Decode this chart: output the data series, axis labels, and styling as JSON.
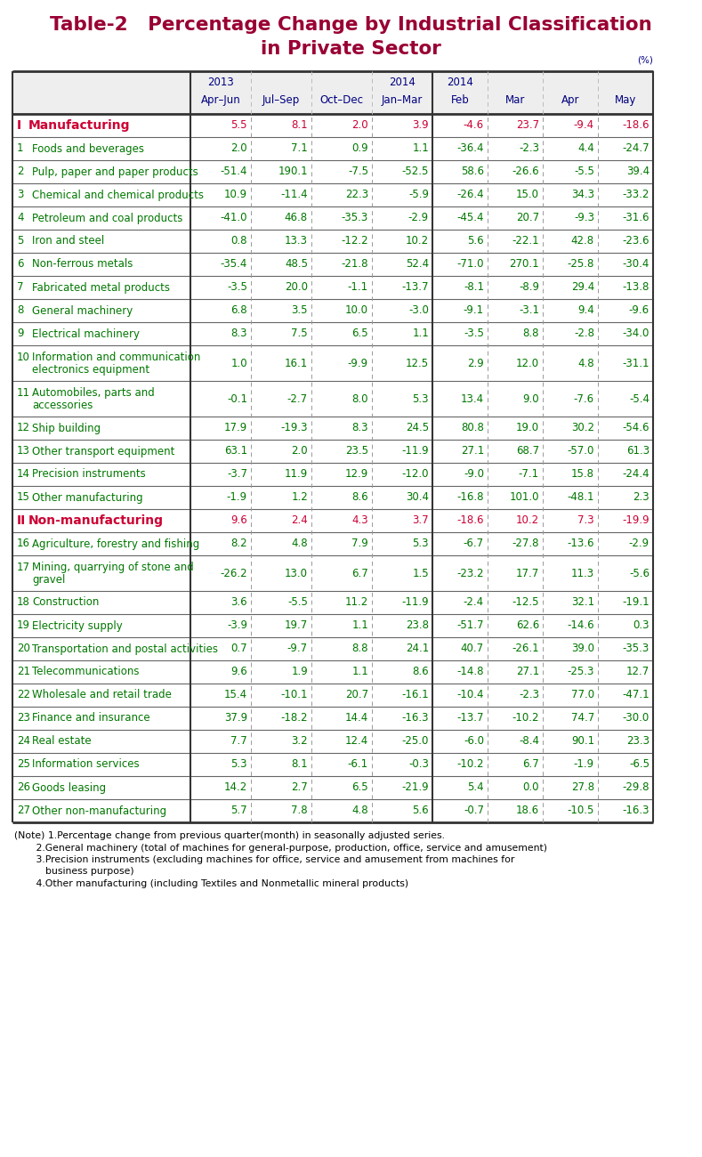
{
  "title_line1": "Table-2   Percentage Change by Industrial Classification",
  "title_line2": "in Private Sector",
  "title_color": "#990033",
  "percent_label": "(%)",
  "col_headers": [
    {
      "line1": "2013",
      "line2": "Apr–Jun"
    },
    {
      "line1": "",
      "line2": "Jul–Sep"
    },
    {
      "line1": "",
      "line2": "Oct–Dec"
    },
    {
      "line1": "2014",
      "line2": "Jan–Mar"
    },
    {
      "line1": "2014",
      "line2": "Feb"
    },
    {
      "line1": "",
      "line2": "Mar"
    },
    {
      "line1": "",
      "line2": "Apr"
    },
    {
      "line1": "",
      "line2": "May"
    }
  ],
  "rows": [
    {
      "num": "I",
      "label": "Manufacturing",
      "type": "section",
      "values": [
        "5.5",
        "8.1",
        "2.0",
        "3.9",
        "-4.6",
        "23.7",
        "-9.4",
        "-18.6"
      ]
    },
    {
      "num": "1",
      "label": "Foods and beverages",
      "type": "normal",
      "values": [
        "2.0",
        "7.1",
        "0.9",
        "1.1",
        "-36.4",
        "-2.3",
        "4.4",
        "-24.7"
      ]
    },
    {
      "num": "2",
      "label": "Pulp, paper and paper products",
      "type": "normal",
      "values": [
        "-51.4",
        "190.1",
        "-7.5",
        "-52.5",
        "58.6",
        "-26.6",
        "-5.5",
        "39.4"
      ]
    },
    {
      "num": "3",
      "label": "Chemical and chemical products",
      "type": "normal",
      "values": [
        "10.9",
        "-11.4",
        "22.3",
        "-5.9",
        "-26.4",
        "15.0",
        "34.3",
        "-33.2"
      ]
    },
    {
      "num": "4",
      "label": "Petroleum and coal products",
      "type": "normal",
      "values": [
        "-41.0",
        "46.8",
        "-35.3",
        "-2.9",
        "-45.4",
        "20.7",
        "-9.3",
        "-31.6"
      ]
    },
    {
      "num": "5",
      "label": "Iron and steel",
      "type": "normal",
      "values": [
        "0.8",
        "13.3",
        "-12.2",
        "10.2",
        "5.6",
        "-22.1",
        "42.8",
        "-23.6"
      ]
    },
    {
      "num": "6",
      "label": "Non-ferrous metals",
      "type": "normal",
      "values": [
        "-35.4",
        "48.5",
        "-21.8",
        "52.4",
        "-71.0",
        "270.1",
        "-25.8",
        "-30.4"
      ]
    },
    {
      "num": "7",
      "label": "Fabricated metal products",
      "type": "normal",
      "values": [
        "-3.5",
        "20.0",
        "-1.1",
        "-13.7",
        "-8.1",
        "-8.9",
        "29.4",
        "-13.8"
      ]
    },
    {
      "num": "8",
      "label": "General machinery",
      "type": "normal",
      "values": [
        "6.8",
        "3.5",
        "10.0",
        "-3.0",
        "-9.1",
        "-3.1",
        "9.4",
        "-9.6"
      ]
    },
    {
      "num": "9",
      "label": "Electrical machinery",
      "type": "normal",
      "values": [
        "8.3",
        "7.5",
        "6.5",
        "1.1",
        "-3.5",
        "8.8",
        "-2.8",
        "-34.0"
      ]
    },
    {
      "num": "10",
      "label": "Information and communication\nelectronics equipment",
      "type": "tall",
      "values": [
        "1.0",
        "16.1",
        "-9.9",
        "12.5",
        "2.9",
        "12.0",
        "4.8",
        "-31.1"
      ]
    },
    {
      "num": "11",
      "label": "Automobiles, parts and\naccessories",
      "type": "tall",
      "values": [
        "-0.1",
        "-2.7",
        "8.0",
        "5.3",
        "13.4",
        "9.0",
        "-7.6",
        "-5.4"
      ]
    },
    {
      "num": "12",
      "label": "Ship building",
      "type": "normal",
      "values": [
        "17.9",
        "-19.3",
        "8.3",
        "24.5",
        "80.8",
        "19.0",
        "30.2",
        "-54.6"
      ]
    },
    {
      "num": "13",
      "label": "Other transport equipment",
      "type": "normal",
      "values": [
        "63.1",
        "2.0",
        "23.5",
        "-11.9",
        "27.1",
        "68.7",
        "-57.0",
        "61.3"
      ]
    },
    {
      "num": "14",
      "label": "Precision instruments",
      "type": "normal",
      "values": [
        "-3.7",
        "11.9",
        "12.9",
        "-12.0",
        "-9.0",
        "-7.1",
        "15.8",
        "-24.4"
      ]
    },
    {
      "num": "15",
      "label": "Other manufacturing",
      "type": "normal",
      "values": [
        "-1.9",
        "1.2",
        "8.6",
        "30.4",
        "-16.8",
        "101.0",
        "-48.1",
        "2.3"
      ]
    },
    {
      "num": "II",
      "label": "Non-manufacturing",
      "type": "section",
      "values": [
        "9.6",
        "2.4",
        "4.3",
        "3.7",
        "-18.6",
        "10.2",
        "7.3",
        "-19.9"
      ]
    },
    {
      "num": "16",
      "label": "Agriculture, forestry and fishing",
      "type": "normal",
      "values": [
        "8.2",
        "4.8",
        "7.9",
        "5.3",
        "-6.7",
        "-27.8",
        "-13.6",
        "-2.9"
      ]
    },
    {
      "num": "17",
      "label": "Mining, quarrying of stone and\ngravel",
      "type": "tall",
      "values": [
        "-26.2",
        "13.0",
        "6.7",
        "1.5",
        "-23.2",
        "17.7",
        "11.3",
        "-5.6"
      ]
    },
    {
      "num": "18",
      "label": "Construction",
      "type": "normal",
      "values": [
        "3.6",
        "-5.5",
        "11.2",
        "-11.9",
        "-2.4",
        "-12.5",
        "32.1",
        "-19.1"
      ]
    },
    {
      "num": "19",
      "label": "Electricity supply",
      "type": "normal",
      "values": [
        "-3.9",
        "19.7",
        "1.1",
        "23.8",
        "-51.7",
        "62.6",
        "-14.6",
        "0.3"
      ]
    },
    {
      "num": "20",
      "label": "Transportation and postal activities",
      "type": "normal",
      "values": [
        "0.7",
        "-9.7",
        "8.8",
        "24.1",
        "40.7",
        "-26.1",
        "39.0",
        "-35.3"
      ]
    },
    {
      "num": "21",
      "label": "Telecommunications",
      "type": "normal",
      "values": [
        "9.6",
        "1.9",
        "1.1",
        "8.6",
        "-14.8",
        "27.1",
        "-25.3",
        "12.7"
      ]
    },
    {
      "num": "22",
      "label": "Wholesale and retail trade",
      "type": "normal",
      "values": [
        "15.4",
        "-10.1",
        "20.7",
        "-16.1",
        "-10.4",
        "-2.3",
        "77.0",
        "-47.1"
      ]
    },
    {
      "num": "23",
      "label": "Finance and insurance",
      "type": "normal",
      "values": [
        "37.9",
        "-18.2",
        "14.4",
        "-16.3",
        "-13.7",
        "-10.2",
        "74.7",
        "-30.0"
      ]
    },
    {
      "num": "24",
      "label": "Real estate",
      "type": "normal",
      "values": [
        "7.7",
        "3.2",
        "12.4",
        "-25.0",
        "-6.0",
        "-8.4",
        "90.1",
        "23.3"
      ]
    },
    {
      "num": "25",
      "label": "Information services",
      "type": "normal",
      "values": [
        "5.3",
        "8.1",
        "-6.1",
        "-0.3",
        "-10.2",
        "6.7",
        "-1.9",
        "-6.5"
      ]
    },
    {
      "num": "26",
      "label": "Goods leasing",
      "type": "normal",
      "values": [
        "14.2",
        "2.7",
        "6.5",
        "-21.9",
        "5.4",
        "0.0",
        "27.8",
        "-29.8"
      ]
    },
    {
      "num": "27",
      "label": "Other non-manufacturing",
      "type": "normal",
      "values": [
        "5.7",
        "7.8",
        "4.8",
        "5.6",
        "-0.7",
        "18.6",
        "-10.5",
        "-16.3"
      ]
    }
  ],
  "notes": [
    "(Note) 1.Percentage change from previous quarter(month) in seasonally adjusted series.",
    "       2.General machinery (total of machines for general-purpose, production, office, service and amusement)",
    "       3.Precision instruments (excluding machines for office, service and amusement from machines for",
    "          business purpose)",
    "       4.Other manufacturing (including Textiles and Nonmetallic mineral products)"
  ],
  "section_color": "#cc0033",
  "normal_color": "#007700",
  "header_color": "#000080",
  "bg_color": "#ffffff"
}
